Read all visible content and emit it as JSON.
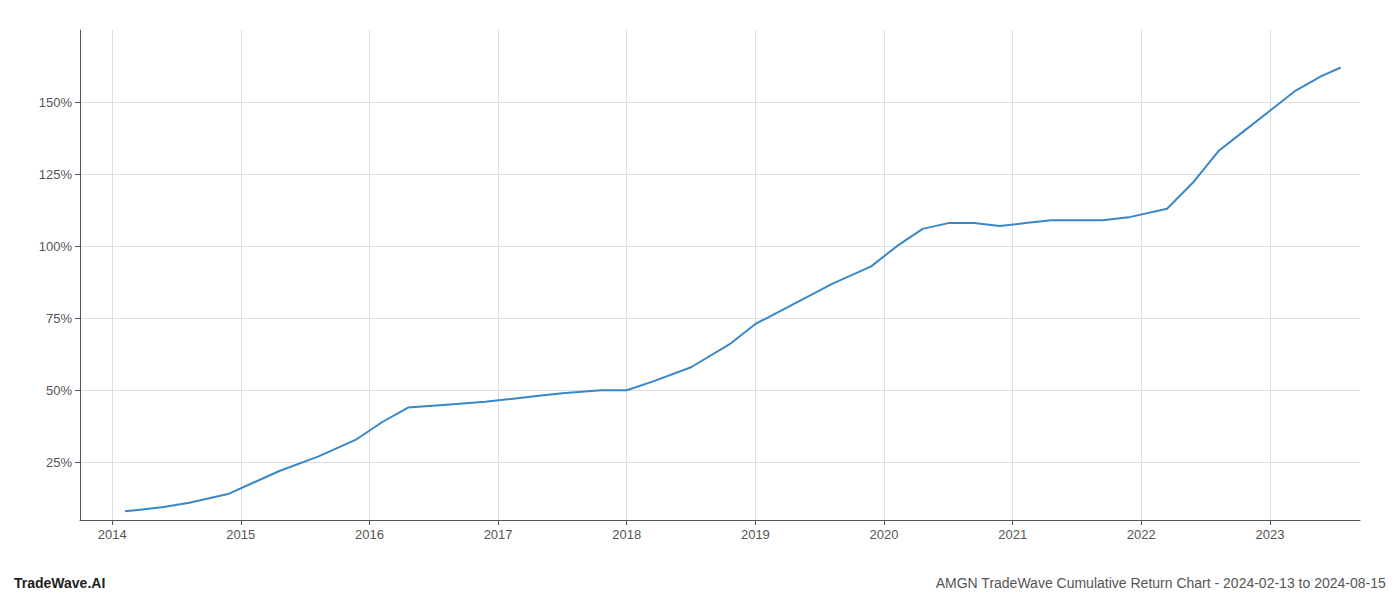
{
  "chart_data": {
    "type": "line",
    "x": [
      2014.1,
      2014.2,
      2014.4,
      2014.6,
      2014.9,
      2015.1,
      2015.3,
      2015.6,
      2015.9,
      2016.1,
      2016.3,
      2016.6,
      2016.9,
      2017.1,
      2017.3,
      2017.5,
      2017.8,
      2018.0,
      2018.2,
      2018.5,
      2018.8,
      2019.0,
      2019.3,
      2019.6,
      2019.9,
      2020.1,
      2020.3,
      2020.5,
      2020.7,
      2020.9,
      2021.1,
      2021.3,
      2021.5,
      2021.7,
      2021.9,
      2022.2,
      2022.4,
      2022.6,
      2022.8,
      2023.0,
      2023.2,
      2023.4,
      2023.55
    ],
    "values": [
      8,
      8.5,
      9.5,
      11,
      14,
      18,
      22,
      27,
      33,
      39,
      44,
      45,
      46,
      47,
      48,
      49,
      50,
      50,
      53,
      58,
      66,
      73,
      80,
      87,
      93,
      100,
      106,
      108,
      108,
      107,
      108,
      109,
      109,
      109,
      110,
      113,
      122,
      133,
      140,
      147,
      154,
      159,
      162
    ],
    "color": "#3a87c8",
    "xlim": [
      2013.75,
      2023.7
    ],
    "xticks": [
      2014,
      2015,
      2016,
      2017,
      2018,
      2019,
      2020,
      2021,
      2022,
      2023
    ],
    "ylim": [
      5,
      175
    ],
    "yticks": [
      {
        "value": 25,
        "label": "25%"
      },
      {
        "value": 50,
        "label": "50%"
      },
      {
        "value": 75,
        "label": "75%"
      },
      {
        "value": 100,
        "label": "100%"
      },
      {
        "value": 125,
        "label": "125%"
      },
      {
        "value": 150,
        "label": "150%"
      }
    ],
    "grid": true,
    "annotations": [
      "TradeWave.AI",
      "AMGN TradeWave Cumulative Return Chart - 2024-02-13 to 2024-08-15"
    ]
  }
}
